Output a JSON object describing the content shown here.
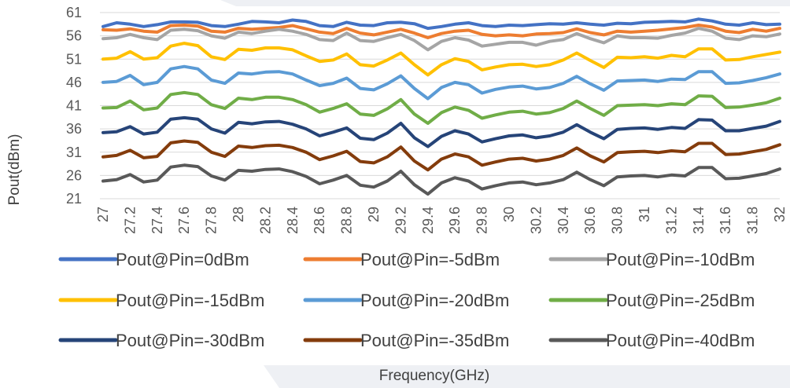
{
  "chart_data": {
    "type": "line",
    "xlabel": "Frequency(GHz)",
    "ylabel": "Pout(dBm)",
    "ylim": [
      21,
      61
    ],
    "yticks": [
      21,
      26,
      31,
      36,
      41,
      46,
      51,
      56,
      61
    ],
    "grid": "horizontal",
    "legend_position": "bottom",
    "x": [
      27.0,
      27.1,
      27.2,
      27.3,
      27.4,
      27.5,
      27.6,
      27.7,
      27.8,
      27.9,
      28.0,
      28.1,
      28.2,
      28.3,
      28.4,
      28.5,
      28.6,
      28.7,
      28.8,
      28.9,
      29.0,
      29.1,
      29.2,
      29.3,
      29.4,
      29.5,
      29.6,
      29.7,
      29.8,
      29.9,
      30.0,
      30.1,
      30.2,
      30.3,
      30.4,
      30.5,
      30.6,
      30.7,
      30.8,
      30.9,
      31.0,
      31.1,
      31.2,
      31.3,
      31.4,
      31.5,
      31.6,
      31.7,
      31.8,
      31.9,
      32.0
    ],
    "x_tick_labels": [
      "27",
      "27.2",
      "27.4",
      "27.6",
      "27.8",
      "28",
      "28.2",
      "28.4",
      "28.6",
      "28.8",
      "29",
      "29.2",
      "29.4",
      "29.6",
      "29.8",
      "30",
      "30.2",
      "30.4",
      "30.6",
      "30.8",
      "31",
      "31.2",
      "31.4",
      "31.6",
      "31.8",
      "32"
    ],
    "series": [
      {
        "name": "Pout@Pin=0dBm",
        "color": "#4472c4",
        "values": [
          58,
          58.8,
          58.5,
          58,
          58.4,
          59,
          59,
          58.9,
          58.2,
          58,
          58.5,
          59.1,
          59,
          58.8,
          59.4,
          59.1,
          58.2,
          58,
          58.9,
          58.3,
          58.2,
          58.8,
          58.9,
          58.6,
          57.6,
          58,
          58.5,
          58.8,
          58.2,
          58,
          58.3,
          58.2,
          58.4,
          58.6,
          58.5,
          58.8,
          58.5,
          58.3,
          58.7,
          58.6,
          58.9,
          59,
          59.1,
          59,
          59.6,
          59.2,
          58.5,
          58.3,
          58.8,
          58.4,
          58.5
        ]
      },
      {
        "name": "Pout@Pin=-5dBm",
        "color": "#ed7d31",
        "values": [
          57.3,
          57.2,
          57.5,
          57,
          56.8,
          58.2,
          58.3,
          58.1,
          57,
          56.8,
          57.6,
          57.4,
          57.6,
          57.8,
          58.2,
          57.5,
          56.8,
          56.5,
          57.6,
          56.6,
          56.2,
          56.8,
          57.4,
          56.6,
          55.6,
          56.5,
          57,
          57.2,
          56.3,
          56,
          56.2,
          56,
          56.4,
          56.5,
          56.7,
          57.5,
          56.7,
          56.2,
          57,
          56.8,
          57,
          57.2,
          57.5,
          57.8,
          58.3,
          57.9,
          57,
          56.7,
          57.4,
          57,
          57.6
        ]
      },
      {
        "name": "Pout@Pin=-10dBm",
        "color": "#a5a5a5",
        "values": [
          55.4,
          55.6,
          56.3,
          55.6,
          55.2,
          57.2,
          57.4,
          57.1,
          56,
          55.5,
          56.8,
          56.5,
          57,
          57.4,
          57,
          56.3,
          55.2,
          55,
          56.6,
          55,
          54.8,
          55.6,
          56.3,
          55,
          53,
          54.8,
          55.6,
          55.1,
          53.8,
          54.2,
          54.6,
          54.6,
          54,
          54.8,
          55.2,
          56.5,
          55.4,
          54.5,
          56,
          55.6,
          55.6,
          55.5,
          56.1,
          56.6,
          57.6,
          57,
          55.5,
          55.2,
          56,
          55.8,
          56.4
        ]
      },
      {
        "name": "Pout@Pin=-15dBm",
        "color": "#ffc000",
        "values": [
          51,
          51.2,
          52.6,
          51,
          51.3,
          53.8,
          54.4,
          53.9,
          51.5,
          50.9,
          53.1,
          52.9,
          53.4,
          53.4,
          53,
          51.7,
          50.5,
          50.8,
          52.1,
          49.8,
          49.5,
          50.8,
          52.3,
          49.8,
          47.6,
          49.8,
          51.1,
          50.5,
          48.7,
          49.3,
          49.8,
          49.9,
          49.4,
          49.8,
          50.8,
          52.3,
          50.7,
          49.2,
          51.4,
          51.3,
          51.5,
          51.2,
          51.8,
          51.5,
          53.2,
          53.2,
          50.8,
          50.9,
          51.5,
          52,
          52.5
        ]
      },
      {
        "name": "Pout@Pin=-20dBm",
        "color": "#5b9bd5",
        "values": [
          46,
          46.2,
          47.5,
          45.5,
          46,
          48.9,
          49.4,
          48.9,
          46.5,
          45.8,
          48,
          47.8,
          48.2,
          48.3,
          47.8,
          46.5,
          45.3,
          45.8,
          46.9,
          44.7,
          44.4,
          45.7,
          47.4,
          44.7,
          42.5,
          44.9,
          46,
          45.5,
          43.7,
          44.5,
          45,
          45.2,
          44.6,
          44.9,
          45.8,
          47.3,
          45.7,
          44.3,
          46.3,
          46.4,
          46.5,
          46.2,
          46.7,
          46.6,
          48.3,
          48.3,
          45.8,
          45.9,
          46.4,
          47,
          47.8
        ]
      },
      {
        "name": "Pout@Pin=-25dBm",
        "color": "#70ad47",
        "values": [
          40.5,
          40.6,
          42,
          40.1,
          40.5,
          43.4,
          43.8,
          43.4,
          41.2,
          40.4,
          42.6,
          42.3,
          42.8,
          42.8,
          42.3,
          41.2,
          39.6,
          40.4,
          41.4,
          39.2,
          38.9,
          40.3,
          42.3,
          39.2,
          37.2,
          39.5,
          40.7,
          40,
          38.3,
          39,
          39.6,
          39.8,
          39.2,
          39.5,
          40.4,
          42,
          40.4,
          38.9,
          41,
          41.1,
          41.2,
          41,
          41.4,
          41.2,
          43.1,
          43,
          40.6,
          40.7,
          41.1,
          41.6,
          42.6
        ]
      },
      {
        "name": "Pout@Pin=-30dBm",
        "color": "#264478",
        "values": [
          35.2,
          35.4,
          36.5,
          34.9,
          35.3,
          38.1,
          38.4,
          38.1,
          36,
          35.1,
          37.4,
          37.1,
          37.5,
          37.6,
          37,
          36,
          34.5,
          35.3,
          36.2,
          34,
          33.7,
          35.1,
          37.2,
          34.1,
          32.2,
          34.4,
          35.6,
          34.9,
          33.2,
          33.9,
          34.5,
          34.7,
          34.1,
          34.5,
          35.3,
          36.9,
          35.3,
          33.9,
          35.9,
          36.1,
          36.2,
          35.9,
          36.3,
          36.1,
          38,
          37.9,
          35.6,
          35.6,
          36.1,
          36.6,
          37.6
        ]
      },
      {
        "name": "Pout@Pin=-35dBm",
        "color": "#843c0c",
        "values": [
          30,
          30.3,
          31.4,
          29.8,
          30.1,
          33,
          33.4,
          33.1,
          31,
          30.1,
          32.3,
          32,
          32.4,
          32.5,
          32,
          31,
          29.4,
          30.2,
          31.2,
          29,
          28.7,
          30,
          32.1,
          29.1,
          27.2,
          29.5,
          30.6,
          30,
          28.2,
          28.9,
          29.5,
          29.7,
          29.1,
          29.5,
          30.3,
          31.9,
          30.2,
          28.9,
          30.9,
          31.1,
          31.2,
          30.9,
          31.3,
          31.1,
          32.9,
          32.9,
          30.5,
          30.6,
          31.1,
          31.6,
          32.6
        ]
      },
      {
        "name": "Pout@Pin=-40dBm",
        "color": "#595959",
        "values": [
          24.8,
          25.1,
          26.2,
          24.6,
          25,
          27.8,
          28.2,
          27.9,
          25.9,
          25,
          27.1,
          26.9,
          27.3,
          27.4,
          26.8,
          25.8,
          24.2,
          25,
          26,
          23.9,
          23.5,
          24.8,
          26.9,
          24,
          22,
          24.4,
          25.5,
          24.8,
          23.1,
          23.8,
          24.4,
          24.6,
          24,
          24.4,
          25.1,
          26.7,
          25.1,
          23.8,
          25.7,
          25.9,
          26,
          25.7,
          26.1,
          25.9,
          27.7,
          27.7,
          25.3,
          25.4,
          25.9,
          26.4,
          27.4
        ]
      }
    ]
  }
}
